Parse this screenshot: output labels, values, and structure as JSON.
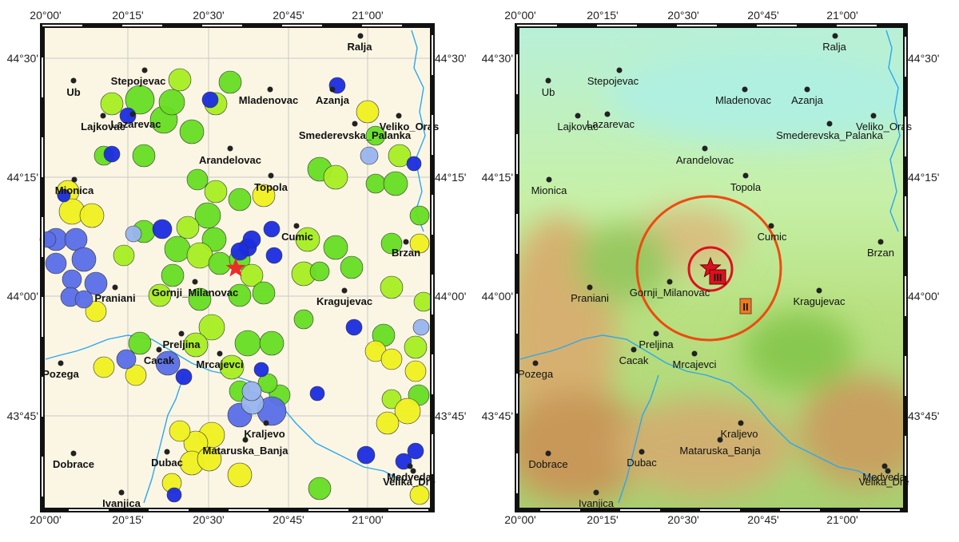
{
  "axes": {
    "x_labels": [
      "20°00'",
      "20°15'",
      "20°30'",
      "20°45'",
      "21°00'"
    ],
    "y_labels": [
      "44°30'",
      "44°15'",
      "44°00'",
      "43°45'"
    ]
  },
  "towns": [
    "Ralja",
    "Ub",
    "Stepojevac",
    "Mladenovac",
    "Azanja",
    "Lajkovac",
    "Lazarevac",
    "Veliko_Oras",
    "Smederevska_Palanka",
    "Arandelovac",
    "Topola",
    "Mionica",
    "Cumic",
    "Brzan",
    "Gornji_Milanovac",
    "Praniani",
    "Kragujevac",
    "Preljina",
    "Cacak",
    "Mrcajevci",
    "Pozega",
    "Kraljevo",
    "Mataruska_Banja",
    "Dobrace",
    "Dubac",
    "Medveda",
    "Velika_Dre",
    "Ivanjica"
  ],
  "intensity_labels": [
    "III",
    "II"
  ]
}
